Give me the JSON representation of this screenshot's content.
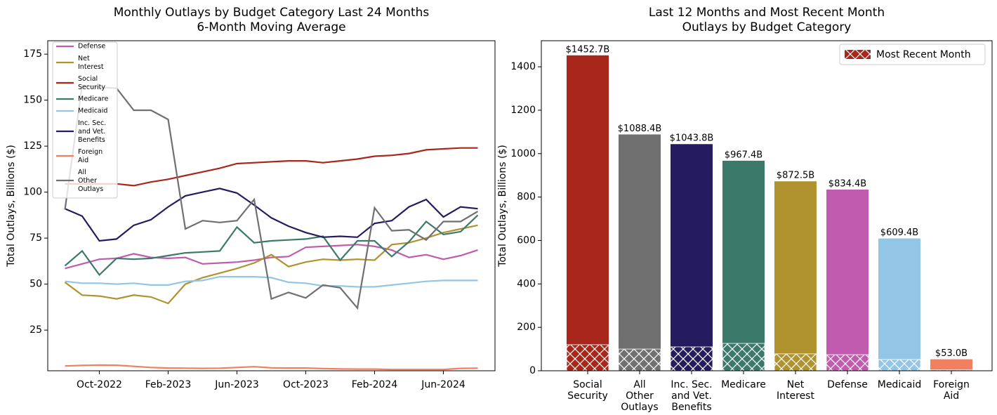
{
  "chart_data": [
    {
      "type": "line",
      "title": "Monthly Outlays by Budget Category Last 24 Months\n6-Month Moving Average",
      "y_label": "Total Outlays, Billions ($)",
      "x": [
        "2022-08",
        "2022-09",
        "2022-10",
        "2022-11",
        "2022-12",
        "2023-01",
        "2023-02",
        "2023-03",
        "2023-04",
        "2023-05",
        "2023-06",
        "2023-07",
        "2023-08",
        "2023-09",
        "2023-10",
        "2023-11",
        "2023-12",
        "2024-01",
        "2024-02",
        "2024-03",
        "2024-04",
        "2024-05",
        "2024-06",
        "2024-07",
        "2024-08"
      ],
      "xlim": [
        "2022-07",
        "2024-09"
      ],
      "xticks": [
        {
          "value": "2022-10",
          "label": "Oct-2022"
        },
        {
          "value": "2023-02",
          "label": "Feb-2023"
        },
        {
          "value": "2023-06",
          "label": "Jun-2023"
        },
        {
          "value": "2023-10",
          "label": "Oct-2023"
        },
        {
          "value": "2024-02",
          "label": "Feb-2024"
        },
        {
          "value": "2024-06",
          "label": "Jun-2024"
        }
      ],
      "ylim": [
        2.9,
        182.3
      ],
      "yticks": [
        25,
        50,
        75,
        100,
        125,
        150,
        175
      ],
      "legend": "upper left",
      "series": [
        {
          "name": "Defense",
          "color": "#c05bb0",
          "values": [
            58.5,
            61,
            63.5,
            64,
            66.5,
            64.5,
            64,
            64.5,
            61,
            61.5,
            62,
            63,
            64.5,
            65,
            70,
            70.5,
            71,
            71.5,
            70.5,
            68.5,
            64.5,
            66,
            63.5,
            65.5,
            68.5
          ]
        },
        {
          "name": "Net\nInterest",
          "color": "#b0922f",
          "values": [
            51,
            44,
            43.5,
            42,
            44,
            43,
            39.5,
            50,
            53.5,
            56,
            58.5,
            61.5,
            66,
            59.5,
            62,
            63.5,
            63,
            63.5,
            63,
            71.5,
            72.5,
            75,
            78,
            80,
            82
          ]
        },
        {
          "name": "Social\nSecurity",
          "color": "#a8271a",
          "values": [
            104.5,
            104.5,
            104.5,
            104.5,
            103.5,
            105.5,
            107,
            109,
            111,
            113,
            115.5,
            116,
            116.5,
            117,
            117,
            116,
            117,
            118,
            119.5,
            120,
            121,
            123,
            123.5,
            124,
            124
          ]
        },
        {
          "name": "Medicare",
          "color": "#3b7a6a",
          "values": [
            60,
            68,
            55,
            64,
            63.5,
            64,
            65.5,
            67,
            67.5,
            68,
            81,
            72.5,
            73.5,
            74,
            74.5,
            76,
            63,
            73.5,
            73.5,
            65,
            73,
            84,
            77,
            78.5,
            87.5
          ]
        },
        {
          "name": "Medicaid",
          "color": "#93c6e6",
          "values": [
            51.5,
            50.5,
            50.5,
            50,
            50.5,
            49.5,
            49.5,
            51.5,
            52,
            54,
            54,
            54,
            53.5,
            51,
            50.5,
            49,
            49,
            48.5,
            48.5,
            49.5,
            50.5,
            51.5,
            52,
            52,
            52
          ]
        },
        {
          "name": "Inc. Sec.\nand Vet.\nBenefits",
          "color": "#241c5e",
          "values": [
            91,
            87,
            73.5,
            74.5,
            82,
            85,
            92,
            98,
            100,
            102,
            99.5,
            93,
            86,
            81.5,
            78,
            75.5,
            76,
            75.5,
            83,
            84.5,
            92,
            96,
            86.5,
            92,
            91
          ]
        },
        {
          "name": "Foreign\nAid",
          "color": "#f08060",
          "values": [
            5.5,
            5.8,
            6,
            5.9,
            5.3,
            4.7,
            4.4,
            4.3,
            4.2,
            4.3,
            4.7,
            5.1,
            4.5,
            4.4,
            4.4,
            4.1,
            3.9,
            3.8,
            3.8,
            3.6,
            3.6,
            3.6,
            3.6,
            4.2,
            4.3
          ]
        },
        {
          "name": "All\nOther\nOutlays",
          "color": "#707070",
          "values": [
            90.5,
            158,
            157,
            156.5,
            144.5,
            144.5,
            139.5,
            80,
            84.5,
            83.5,
            84.5,
            96,
            42,
            45.5,
            42.5,
            49.5,
            48,
            37,
            91.5,
            79,
            79.5,
            74,
            84,
            84,
            89.5
          ]
        }
      ]
    },
    {
      "type": "bar",
      "title": "Last 12 Months and Most Recent Month\nOutlays by Budget Category",
      "y_label": "Total Outlays, Billions ($)",
      "categories": [
        "Social\nSecurity",
        "All\nOther\nOutlays",
        "Inc. Sec.\nand Vet.\nBenefits",
        "Medicare",
        "Net\nInterest",
        "Defense",
        "Medicaid",
        "Foreign\nAid"
      ],
      "values": [
        1452.7,
        1088.4,
        1043.8,
        967.4,
        872.5,
        834.4,
        609.4,
        53.0
      ],
      "value_labels": [
        "$1452.7B",
        "$1088.4B",
        "$1043.8B",
        "$967.4B",
        "$872.5B",
        "$834.4B",
        "$609.4B",
        "$53.0B"
      ],
      "colors": [
        "#a8271a",
        "#707070",
        "#241c5e",
        "#3b7a6a",
        "#b0922f",
        "#c05bb0",
        "#93c6e6",
        "#f08060"
      ],
      "ylim": [
        0,
        1520
      ],
      "yticks": [
        0,
        200,
        400,
        600,
        800,
        1000,
        1200,
        1400
      ],
      "legend": "upper right",
      "overlay": {
        "name": "Most Recent Month",
        "color": "#a8271a",
        "hatch": "x",
        "values": [
          120,
          100,
          110,
          126,
          78,
          74,
          52,
          4
        ]
      }
    }
  ]
}
